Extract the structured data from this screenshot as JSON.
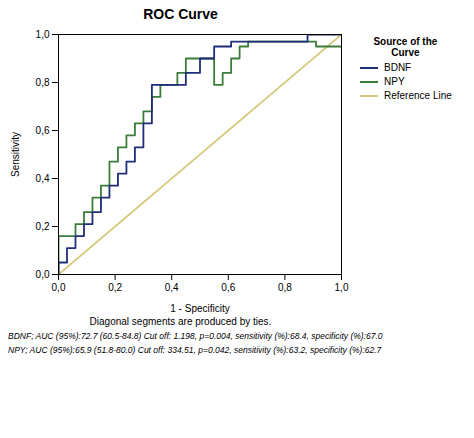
{
  "chart_data": {
    "type": "line",
    "title": "ROC Curve",
    "subtitle": "Diagonal segments are produced by ties.",
    "x_label": "1 - Specificity",
    "y_label": "Sensitivity",
    "annotations": [
      "BDNF; AUC (95%):72.7 (60.5-84.8)  Cut off: 1.198, p=0.004, sensitivity (%):68.4, specificity (%):67.0",
      "NPY; AUC (95%):65.9 (51.8-80.0)  Cut off: 334.51, p=0.042, sensitivity (%):63.2, specificity (%):62.7"
    ],
    "legend_title": "Source of the\nCurve",
    "legend": "right",
    "grid": false,
    "xlim": [
      0,
      1
    ],
    "ylim": [
      0,
      1
    ],
    "xticks": [
      {
        "value": 0.0,
        "label": "0,0"
      },
      {
        "value": 0.2,
        "label": "0,2"
      },
      {
        "value": 0.4,
        "label": "0,4"
      },
      {
        "value": 0.6,
        "label": "0,6"
      },
      {
        "value": 0.8,
        "label": "0,8"
      },
      {
        "value": 1.0,
        "label": "1,0"
      }
    ],
    "yticks": [
      {
        "value": 0.0,
        "label": "0,0"
      },
      {
        "value": 0.2,
        "label": "0,2"
      },
      {
        "value": 0.4,
        "label": "0,4"
      },
      {
        "value": 0.6,
        "label": "0,6"
      },
      {
        "value": 0.8,
        "label": "0,8"
      },
      {
        "value": 1.0,
        "label": "1,0"
      }
    ],
    "series": [
      {
        "name": "BDNF",
        "color": "#1f2d7b",
        "x": [
          0.0,
          0.0,
          0.03,
          0.03,
          0.06,
          0.06,
          0.09,
          0.09,
          0.12,
          0.12,
          0.15,
          0.15,
          0.18,
          0.18,
          0.21,
          0.21,
          0.24,
          0.24,
          0.27,
          0.27,
          0.3,
          0.3,
          0.33,
          0.33,
          0.45,
          0.45,
          0.5,
          0.5,
          0.55,
          0.55,
          0.61,
          0.61,
          0.64,
          0.64,
          0.88,
          0.88,
          1.0
        ],
        "values": [
          0.0,
          0.05,
          0.05,
          0.11,
          0.11,
          0.16,
          0.16,
          0.21,
          0.21,
          0.26,
          0.26,
          0.32,
          0.32,
          0.37,
          0.37,
          0.42,
          0.42,
          0.47,
          0.47,
          0.53,
          0.53,
          0.63,
          0.63,
          0.79,
          0.79,
          0.84,
          0.84,
          0.9,
          0.9,
          0.95,
          0.95,
          0.97,
          0.97,
          0.97,
          0.97,
          1.0,
          1.0
        ]
      },
      {
        "name": "NPY",
        "color": "#3a7d3a",
        "x": [
          0.0,
          0.0,
          0.06,
          0.06,
          0.09,
          0.09,
          0.12,
          0.12,
          0.15,
          0.15,
          0.18,
          0.18,
          0.21,
          0.21,
          0.24,
          0.24,
          0.27,
          0.27,
          0.3,
          0.3,
          0.33,
          0.33,
          0.36,
          0.36,
          0.42,
          0.42,
          0.45,
          0.45,
          0.55,
          0.55,
          0.58,
          0.58,
          0.61,
          0.61,
          0.64,
          0.64,
          0.67,
          0.67,
          0.91,
          0.91,
          1.0
        ],
        "values": [
          0.0,
          0.16,
          0.16,
          0.21,
          0.21,
          0.26,
          0.26,
          0.32,
          0.32,
          0.37,
          0.37,
          0.47,
          0.47,
          0.53,
          0.53,
          0.58,
          0.58,
          0.63,
          0.63,
          0.68,
          0.68,
          0.74,
          0.74,
          0.79,
          0.79,
          0.84,
          0.84,
          0.9,
          0.9,
          0.79,
          0.79,
          0.84,
          0.84,
          0.9,
          0.9,
          0.95,
          0.95,
          0.97,
          0.97,
          0.95,
          0.95
        ]
      },
      {
        "name": "Reference Line",
        "color": "#d4c87a",
        "x": [
          0,
          1
        ],
        "values": [
          0,
          1
        ]
      }
    ]
  }
}
